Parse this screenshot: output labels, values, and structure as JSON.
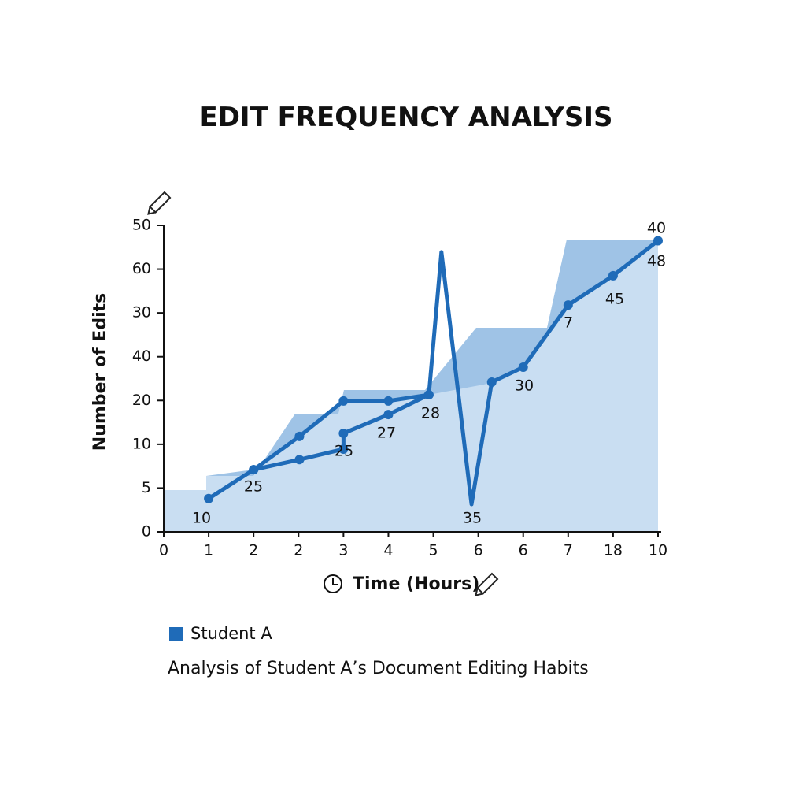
{
  "chart_data": {
    "type": "line",
    "title": "EDIT FREQUENCY ANALYSIS",
    "xlabel": "Time (Hours)",
    "ylabel": "Number of Edits",
    "caption": "Analysis of Student A’s Document Editing Habits",
    "xlim": [
      0,
      11
    ],
    "xticks": [
      {
        "value": 0,
        "label": "0"
      },
      {
        "value": 1,
        "label": "1"
      },
      {
        "value": 2,
        "label": "2"
      },
      {
        "value": 3,
        "label": "2"
      },
      {
        "value": 4,
        "label": "3"
      },
      {
        "value": 5,
        "label": "4"
      },
      {
        "value": 6,
        "label": "5"
      },
      {
        "value": 7,
        "label": "6"
      },
      {
        "value": 8,
        "label": "6"
      },
      {
        "value": 9,
        "label": "7"
      },
      {
        "value": 10,
        "label": "18"
      },
      {
        "value": 11,
        "label": "10"
      }
    ],
    "ylim": [
      0,
      7
    ],
    "yticks": [
      {
        "value": 0,
        "label": "0"
      },
      {
        "value": 1,
        "label": "5"
      },
      {
        "value": 2,
        "label": "10"
      },
      {
        "value": 3,
        "label": "20"
      },
      {
        "value": 4,
        "label": "40"
      },
      {
        "value": 5,
        "label": "30"
      },
      {
        "value": 6,
        "label": "60"
      },
      {
        "value": 7,
        "label": "50"
      }
    ],
    "series": [
      {
        "name": "Student A",
        "color": "#1f6bb8",
        "x": [
          1,
          2,
          3.02,
          4,
          5,
          5.9,
          6.18,
          6.85,
          7.3,
          8,
          9,
          10,
          11,
          null,
          2,
          3.02,
          4,
          4,
          5,
          5.9
        ],
        "values": [
          0.76,
          1.42,
          2.18,
          2.99,
          2.99,
          3.13,
          6.39,
          0.63,
          3.42,
          3.76,
          5.18,
          5.85,
          6.65,
          null,
          1.42,
          1.65,
          1.89,
          2.25,
          2.68,
          3.13
        ]
      }
    ],
    "point_labels": [
      "10",
      "25",
      "25",
      "27",
      "28",
      "35",
      "30",
      "7",
      "45",
      "48",
      "40"
    ]
  }
}
